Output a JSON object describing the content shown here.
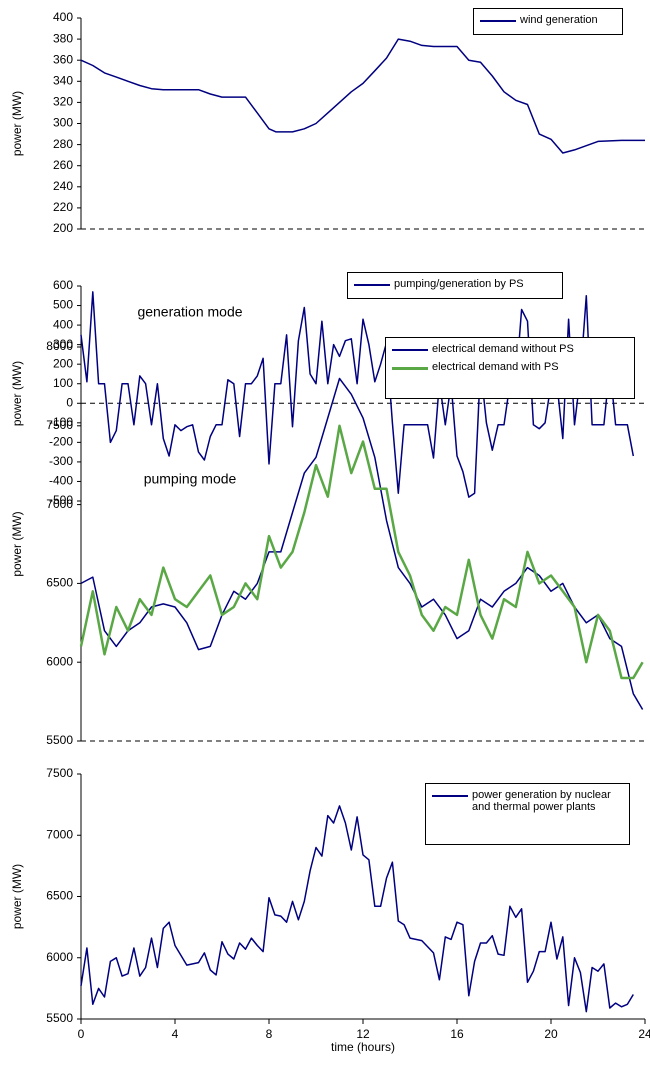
{
  "chart_data": [
    {
      "type": "line",
      "ylabel": "power (MW)",
      "xlim": [
        0,
        24
      ],
      "ylim": [
        200,
        400
      ],
      "yticks": [
        200,
        220,
        240,
        260,
        280,
        300,
        320,
        340,
        360,
        380,
        400
      ],
      "x": [
        0,
        0.5,
        1,
        1.5,
        2,
        2.5,
        3,
        3.5,
        4,
        5,
        5.5,
        6,
        7,
        7.5,
        8,
        8.3,
        9,
        9.5,
        10,
        10.5,
        11,
        11.5,
        12,
        12.5,
        13,
        13.5,
        14,
        14.5,
        15,
        16,
        16.5,
        17,
        17.5,
        18,
        18.5,
        19,
        19.5,
        20,
        20.5,
        21,
        22,
        23,
        24
      ],
      "series": [
        {
          "name": "wind generation",
          "color": "#000080",
          "values": [
            360,
            355,
            348,
            344,
            340,
            336,
            333,
            332,
            332,
            332,
            328,
            325,
            325,
            310,
            295,
            292,
            292,
            295,
            300,
            310,
            320,
            330,
            338,
            350,
            362,
            380,
            378,
            374,
            373,
            373,
            360,
            358,
            345,
            330,
            322,
            318,
            290,
            285,
            272,
            275,
            283,
            284,
            284
          ]
        }
      ]
    },
    {
      "type": "line",
      "ylabel": "power (MW)",
      "xlim": [
        0,
        24
      ],
      "ylim": [
        -500,
        600
      ],
      "yticks": [
        -500,
        -400,
        -300,
        -200,
        -100,
        0,
        100,
        200,
        300,
        400,
        500,
        600
      ],
      "annotations": [
        "generation mode",
        "pumping mode"
      ],
      "x": [
        0,
        0.25,
        0.5,
        0.75,
        1,
        1.25,
        1.5,
        1.75,
        2,
        2.25,
        2.5,
        2.75,
        3,
        3.25,
        3.5,
        3.75,
        4,
        4.25,
        4.5,
        4.75,
        5,
        5.25,
        5.5,
        5.75,
        6,
        6.25,
        6.5,
        6.75,
        7,
        7.25,
        7.5,
        7.75,
        8,
        8.25,
        8.5,
        8.75,
        9,
        9.25,
        9.5,
        9.75,
        10,
        10.25,
        10.5,
        10.75,
        11,
        11.25,
        11.5,
        11.75,
        12,
        12.25,
        12.5,
        12.75,
        13,
        13.25,
        13.5,
        13.75,
        14,
        14.25,
        14.5,
        14.75,
        15,
        15.25,
        15.5,
        15.75,
        16,
        16.25,
        16.5,
        16.75,
        17,
        17.25,
        17.5,
        17.75,
        18,
        18.25,
        18.5,
        18.75,
        19,
        19.25,
        19.5,
        19.75,
        20,
        20.25,
        20.5,
        20.75,
        21,
        21.25,
        21.5,
        21.75,
        22,
        22.25,
        22.5,
        22.75,
        23,
        23.25,
        23.5
      ],
      "series": [
        {
          "name": "pumping/generation by PS",
          "color": "#000080",
          "values": [
            350,
            110,
            570,
            100,
            100,
            -200,
            -140,
            100,
            100,
            -110,
            140,
            100,
            -110,
            100,
            -180,
            -270,
            -110,
            -140,
            -120,
            -110,
            -250,
            -290,
            -170,
            -110,
            -110,
            120,
            100,
            -170,
            100,
            100,
            140,
            230,
            -310,
            100,
            100,
            350,
            -120,
            320,
            490,
            150,
            100,
            420,
            100,
            300,
            240,
            320,
            330,
            100,
            430,
            300,
            110,
            200,
            310,
            -100,
            -460,
            -110,
            -110,
            -110,
            -110,
            -110,
            -280,
            110,
            -110,
            100,
            -270,
            -350,
            -480,
            -460,
            190,
            -100,
            -240,
            -110,
            -110,
            100,
            100,
            480,
            420,
            -110,
            -130,
            -100,
            100,
            100,
            -180,
            430,
            -110,
            140,
            550,
            -110,
            -110,
            -110,
            190,
            -110,
            -110,
            -110,
            -270
          ]
        }
      ]
    },
    {
      "type": "line",
      "ylabel": "power (MW)",
      "xlim": [
        0,
        24
      ],
      "ylim": [
        5500,
        8000
      ],
      "yticks": [
        5500,
        6000,
        6500,
        7000,
        7500,
        8000
      ],
      "x": [
        0,
        0.5,
        1,
        1.5,
        2,
        2.5,
        3,
        3.5,
        4,
        4.5,
        5,
        5.5,
        6,
        6.5,
        7,
        7.5,
        8,
        8.5,
        9,
        9.5,
        10,
        10.5,
        11,
        11.5,
        12,
        12.5,
        13,
        13.5,
        14,
        14.5,
        15,
        15.5,
        16,
        16.5,
        17,
        17.5,
        18,
        18.5,
        19,
        19.5,
        20,
        20.5,
        21,
        21.5,
        22,
        22.5,
        23,
        23.5,
        23.9
      ],
      "series": [
        {
          "name": "electrical demand without PS",
          "color": "#000080",
          "values": [
            6500,
            6540,
            6200,
            6100,
            6200,
            6250,
            6350,
            6370,
            6350,
            6250,
            6080,
            6100,
            6300,
            6450,
            6400,
            6500,
            6700,
            6700,
            6950,
            7200,
            7300,
            7550,
            7800,
            7700,
            7550,
            7300,
            6900,
            6600,
            6500,
            6350,
            6400,
            6300,
            6150,
            6200,
            6400,
            6350,
            6450,
            6500,
            6600,
            6550,
            6450,
            6500,
            6350,
            6250,
            6300,
            6150,
            6100,
            5800,
            5700
          ]
        },
        {
          "name": "electrical demand with PS",
          "color": "#5aa845",
          "values": [
            6100,
            6450,
            6050,
            6350,
            6200,
            6400,
            6300,
            6600,
            6400,
            6350,
            6450,
            6550,
            6300,
            6350,
            6500,
            6400,
            6800,
            6600,
            6700,
            6950,
            7250,
            7050,
            7500,
            7200,
            7400,
            7100,
            7100,
            6700,
            6550,
            6300,
            6200,
            6350,
            6300,
            6650,
            6300,
            6150,
            6400,
            6350,
            6700,
            6500,
            6550,
            6450,
            6350,
            6000,
            6300,
            6200,
            5900,
            5900,
            6000
          ]
        }
      ]
    },
    {
      "type": "line",
      "ylabel": "power (MW)",
      "xlabel": "time (hours)",
      "xlim": [
        0,
        24
      ],
      "ylim": [
        5500,
        7500
      ],
      "xticks": [
        0,
        4,
        8,
        12,
        16,
        20,
        24
      ],
      "yticks": [
        5500,
        6000,
        6500,
        7000,
        7500
      ],
      "x": [
        0,
        0.25,
        0.5,
        0.75,
        1,
        1.25,
        1.5,
        1.75,
        2,
        2.25,
        2.5,
        2.75,
        3,
        3.25,
        3.5,
        3.75,
        4,
        4.5,
        5,
        5.25,
        5.5,
        5.75,
        6,
        6.25,
        6.5,
        6.75,
        7,
        7.25,
        7.5,
        7.75,
        8,
        8.25,
        8.5,
        8.75,
        9,
        9.25,
        9.5,
        9.75,
        10,
        10.25,
        10.5,
        10.75,
        11,
        11.25,
        11.5,
        11.75,
        12,
        12.25,
        12.5,
        12.75,
        13,
        13.25,
        13.5,
        13.75,
        14,
        14.5,
        15,
        15.25,
        15.5,
        15.75,
        16,
        16.25,
        16.5,
        16.75,
        17,
        17.25,
        17.5,
        17.75,
        18,
        18.25,
        18.5,
        18.75,
        19,
        19.25,
        19.5,
        19.75,
        20,
        20.25,
        20.5,
        20.75,
        21,
        21.25,
        21.5,
        21.75,
        22,
        22.25,
        22.5,
        22.75,
        23,
        23.25,
        23.5
      ],
      "series": [
        {
          "name": "power generation by nuclear and thermal power plants",
          "color": "#000080",
          "values": [
            5770,
            6080,
            5620,
            5750,
            5680,
            5970,
            6000,
            5850,
            5870,
            6080,
            5850,
            5920,
            6160,
            5920,
            6240,
            6290,
            6100,
            5940,
            5960,
            6040,
            5900,
            5860,
            6130,
            6030,
            5990,
            6120,
            6070,
            6160,
            6100,
            6050,
            6490,
            6350,
            6340,
            6290,
            6460,
            6310,
            6460,
            6710,
            6900,
            6830,
            7160,
            7100,
            7240,
            7100,
            6880,
            7150,
            6840,
            6800,
            6420,
            6420,
            6650,
            6780,
            6300,
            6270,
            6160,
            6140,
            6040,
            5820,
            6170,
            6150,
            6290,
            6270,
            5690,
            5970,
            6120,
            6120,
            6180,
            6030,
            6020,
            6420,
            6330,
            6400,
            5800,
            5890,
            6050,
            6050,
            6290,
            5990,
            6170,
            5610,
            6000,
            5880,
            5560,
            5920,
            5890,
            5950,
            5590,
            5630,
            5600,
            5620,
            5700
          ]
        }
      ]
    }
  ]
}
